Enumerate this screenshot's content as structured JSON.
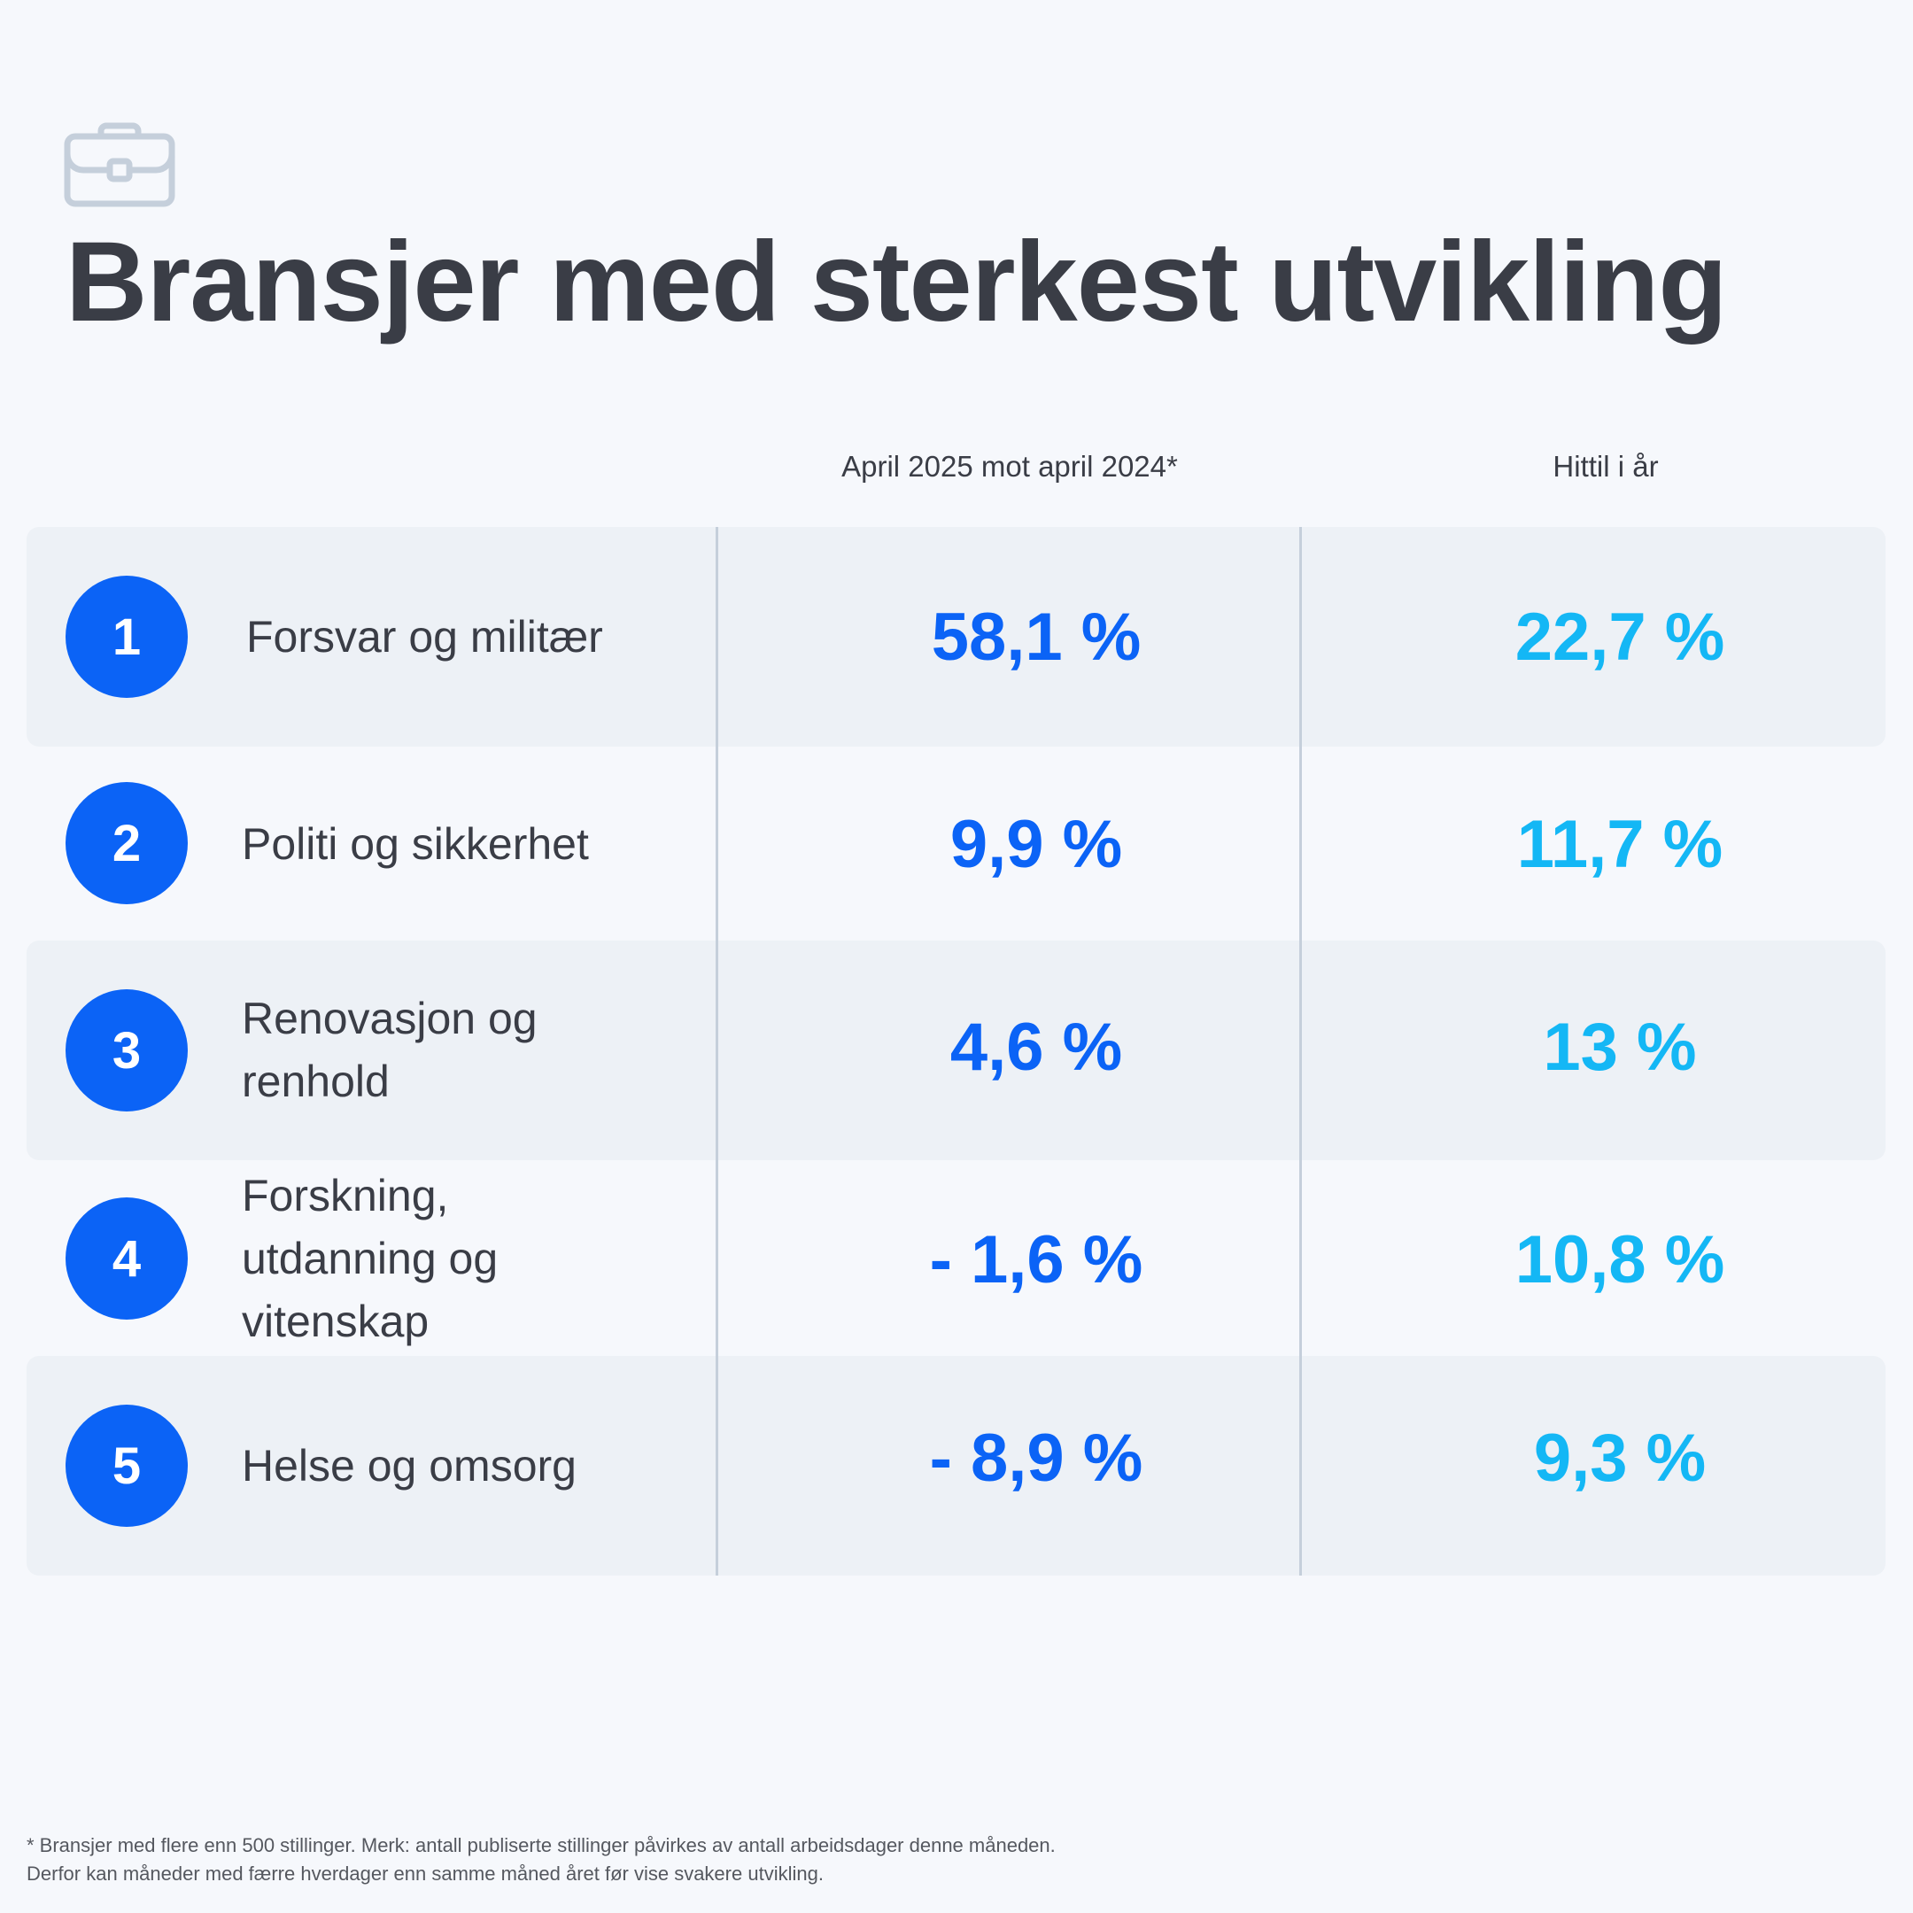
{
  "title": "Bransjer med sterkest utvikling",
  "icon": "briefcase-icon",
  "columns": {
    "period": "April 2025 mot april 2024*",
    "ytd": "Hittil i år"
  },
  "rows": [
    {
      "rank": "1",
      "industry": "Forsvar og militær",
      "period": "58,1 %",
      "ytd": "22,7 %"
    },
    {
      "rank": "2",
      "industry": "Politi og sikkerhet",
      "period": "9,9 %",
      "ytd": "11,7 %"
    },
    {
      "rank": "3",
      "industry": "Renovasjon og renhold",
      "period": "4,6 %",
      "ytd": "13 %"
    },
    {
      "rank": "4",
      "industry": "Forskning, utdanning og vitenskap",
      "period": "- 1,6 %",
      "ytd": "10,8 %"
    },
    {
      "rank": "5",
      "industry": "Helse og omsorg",
      "period": "- 8,9 %",
      "ytd": "9,3 %"
    }
  ],
  "footnote": {
    "line1": "* Bransjer med flere enn 500 stillinger. Merk: antall publiserte stillinger påvirkes av antall arbeidsdager denne måneden.",
    "line2": "Derfor kan måneder med færre hverdager enn samme måned året før vise svakere utvikling."
  },
  "colors": {
    "blue": "#0b63f6",
    "cyan": "#14b7f5",
    "text": "#3a3d46",
    "background": "#f6f8fc"
  }
}
